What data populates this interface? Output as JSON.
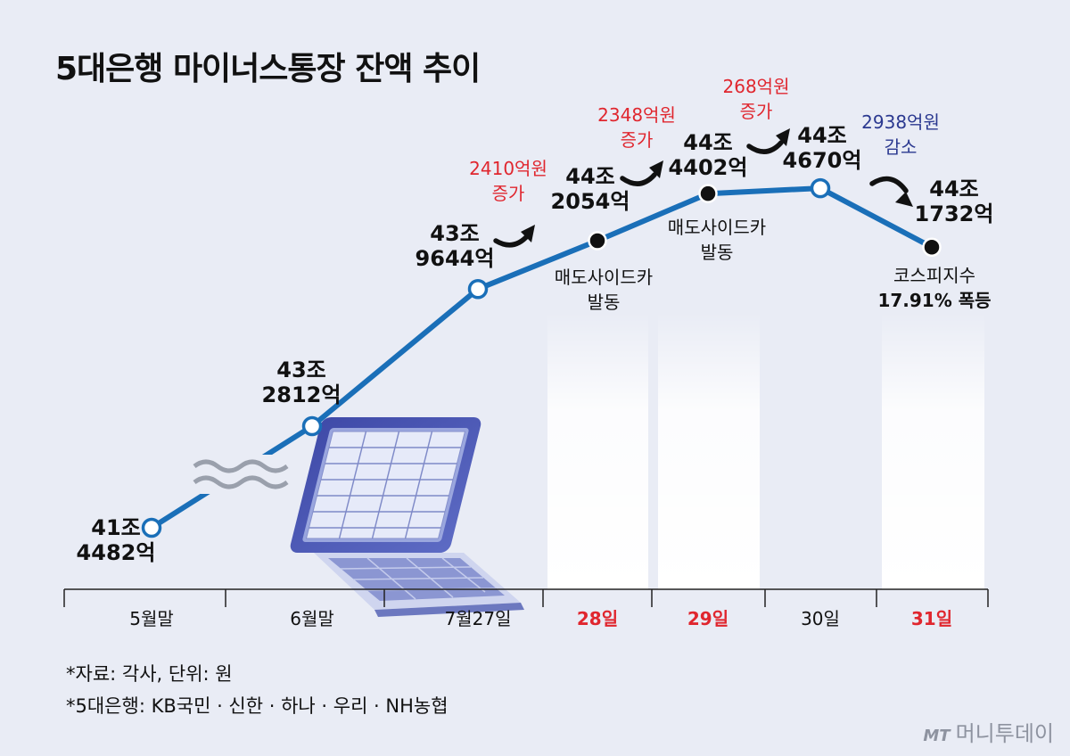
{
  "title": "5대은행 마이너스통장 잔액 추이",
  "notes": [
    "*자료: 각사, 단위: 원",
    "*5대은행: KB국민 · 신한 · 하나 · 우리 · NH농협"
  ],
  "brand": {
    "mark": "MT",
    "name": "머니투데이"
  },
  "colors": {
    "line": "#1a6fb8",
    "highlight": "#e0262e",
    "decrease": "#2b3990",
    "background": "#e9ecf5"
  },
  "chart_data": {
    "type": "line",
    "title": "5대은행 마이너스통장 잔액 추이",
    "categories": [
      "5월말",
      "6월말",
      "7월27일",
      "28일",
      "29일",
      "30일",
      "31일"
    ],
    "highlighted_categories": [
      "28일",
      "29일",
      "31일"
    ],
    "values": [
      414482,
      432812,
      439644,
      442054,
      444402,
      444670,
      441732
    ],
    "unit": "억원",
    "value_labels": [
      [
        "41조",
        "4482억"
      ],
      [
        "43조",
        "2812억"
      ],
      [
        "43조",
        "9644억"
      ],
      [
        "44조",
        "2054억"
      ],
      [
        "44조",
        "4402억"
      ],
      [
        "44조",
        "4670억"
      ],
      [
        "44조",
        "1732억"
      ]
    ],
    "axis_break": "between 5월말 and 6월말",
    "changes": [
      {
        "text": [
          "2410억원",
          "증가"
        ],
        "direction": "up"
      },
      {
        "text": [
          "2348억원",
          "증가"
        ],
        "direction": "up"
      },
      {
        "text": [
          "268억원",
          "증가"
        ],
        "direction": "up"
      },
      {
        "text": [
          "2938억원",
          "감소"
        ],
        "direction": "down"
      }
    ],
    "events": [
      {
        "category": "28일",
        "text": [
          "매도사이드카",
          "발동"
        ],
        "bold": [
          false,
          false
        ]
      },
      {
        "category": "29일",
        "text": [
          "매도사이드카",
          "발동"
        ],
        "bold": [
          false,
          false
        ]
      },
      {
        "category": "31일",
        "text": [
          "코스피지수",
          "17.91% 폭등"
        ],
        "bold": [
          false,
          true
        ]
      }
    ]
  }
}
